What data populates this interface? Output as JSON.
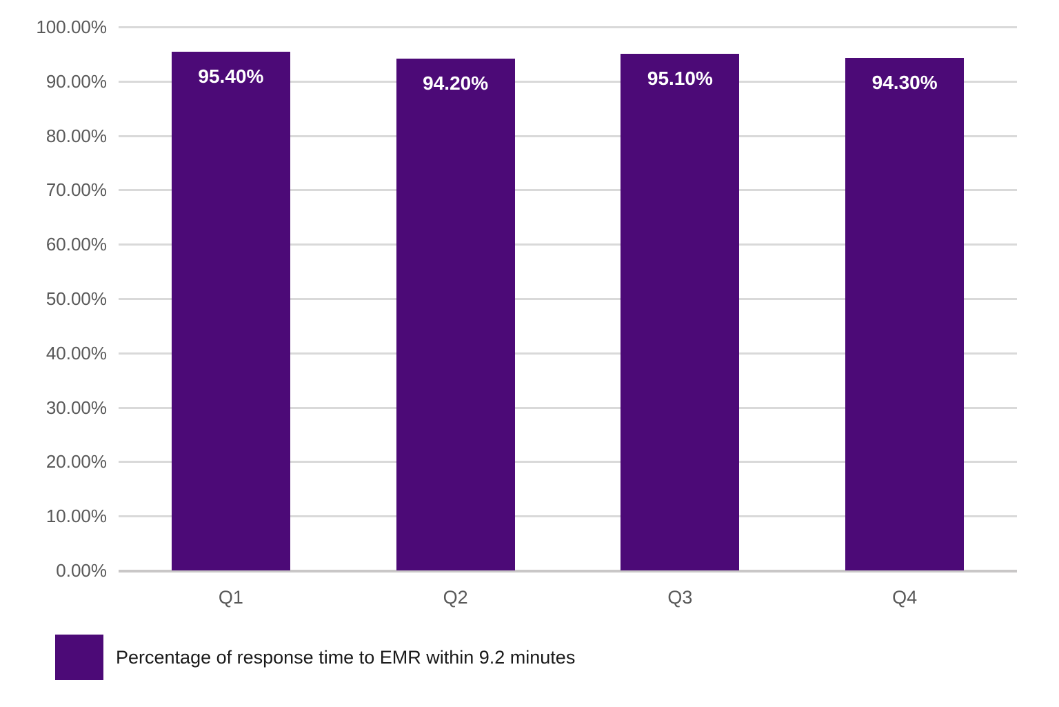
{
  "chart_data": {
    "type": "bar",
    "title": "",
    "xlabel": "",
    "ylabel": "",
    "categories": [
      "Q1",
      "Q2",
      "Q3",
      "Q4"
    ],
    "series": [
      {
        "name": "Percentage of response time to EMR within 9.2 minutes",
        "values": [
          95.4,
          94.2,
          95.1,
          94.3
        ],
        "value_labels": [
          "95.40%",
          "94.20%",
          "95.10%",
          "94.30%"
        ]
      }
    ],
    "ylim": [
      0,
      100
    ],
    "y_ticks": [
      {
        "value": 0,
        "label": "0.00%"
      },
      {
        "value": 10,
        "label": "10.00%"
      },
      {
        "value": 20,
        "label": "20.00%"
      },
      {
        "value": 30,
        "label": "30.00%"
      },
      {
        "value": 40,
        "label": "40.00%"
      },
      {
        "value": 50,
        "label": "50.00%"
      },
      {
        "value": 60,
        "label": "60.00%"
      },
      {
        "value": 70,
        "label": "70.00%"
      },
      {
        "value": 80,
        "label": "80.00%"
      },
      {
        "value": 90,
        "label": "90.00%"
      },
      {
        "value": 100,
        "label": "100.00%"
      }
    ],
    "grid": true,
    "legend_position": "bottom-left",
    "legend_label": "Percentage of response time to EMR within 9.2 minutes",
    "colors": {
      "bar": "#4C0A77",
      "bar_label_text": "#FFFFFF",
      "gridline": "#D9D9D9",
      "axis_line": "#C9C7C7",
      "tick_text": "#595959",
      "legend_text": "#1A1A1A",
      "background": "#FFFFFF"
    }
  }
}
